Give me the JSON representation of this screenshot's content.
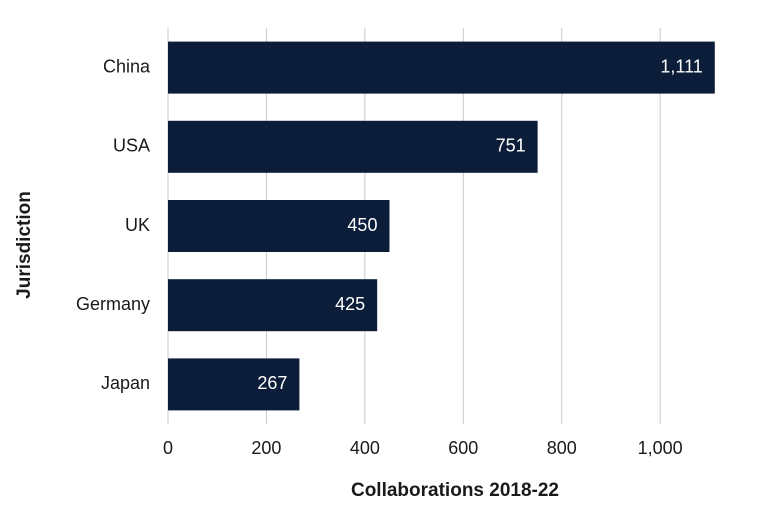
{
  "chart_data": {
    "type": "bar",
    "orientation": "horizontal",
    "x_label": "Collaborations 2018-22",
    "y_label": "Jurisdiction",
    "categories": [
      "China",
      "USA",
      "UK",
      "Germany",
      "Japan"
    ],
    "values": [
      1111,
      751,
      450,
      425,
      267
    ],
    "value_labels": [
      "1,111",
      "751",
      "450",
      "425",
      "267"
    ],
    "color": "#0c1d3a",
    "xlim": [
      0,
      1150
    ],
    "xticks": [
      0,
      200,
      400,
      600,
      800,
      {
        "value": 1000,
        "label": "1,000"
      }
    ],
    "grid": true
  }
}
